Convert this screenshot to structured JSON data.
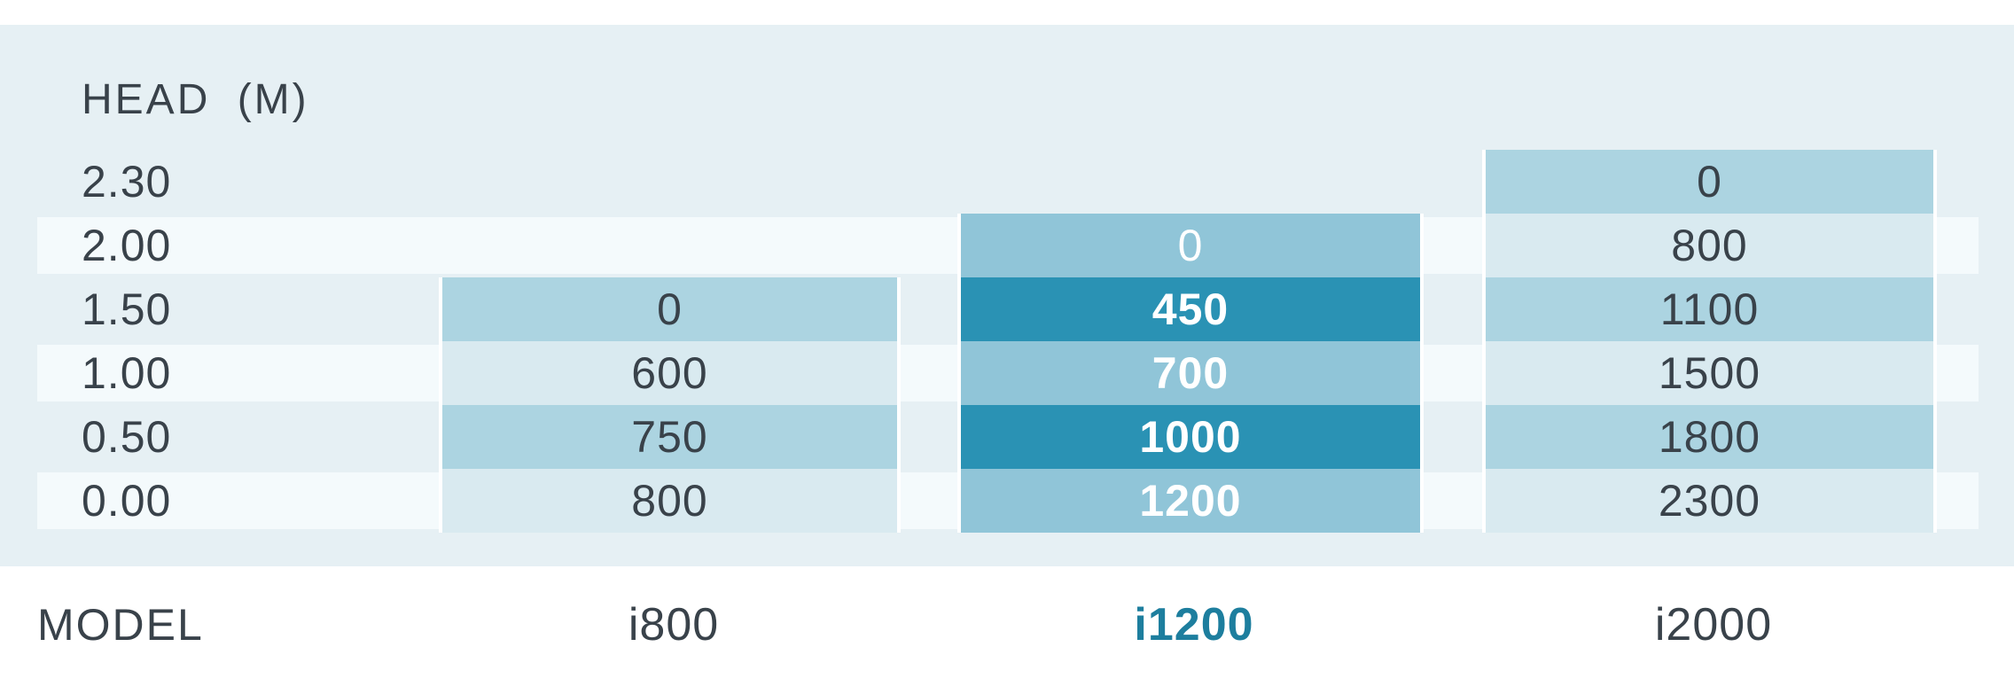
{
  "panel": {
    "head_label": "HEAD (M)"
  },
  "rows": [
    {
      "label": "2.30"
    },
    {
      "label": "2.00"
    },
    {
      "label": "1.50"
    },
    {
      "label": "1.00"
    },
    {
      "label": "0.50"
    },
    {
      "label": "0.00"
    }
  ],
  "columns": [
    {
      "model": "i800",
      "cells": [
        {
          "value": "0"
        },
        {
          "value": "600"
        },
        {
          "value": "750"
        },
        {
          "value": "800"
        }
      ]
    },
    {
      "model": "i1200",
      "cells": [
        {
          "value": "0"
        },
        {
          "value": "450"
        },
        {
          "value": "700"
        },
        {
          "value": "1000"
        },
        {
          "value": "1200"
        }
      ]
    },
    {
      "model": "i2000",
      "cells": [
        {
          "value": "0"
        },
        {
          "value": "800"
        },
        {
          "value": "1100"
        },
        {
          "value": "1500"
        },
        {
          "value": "1800"
        },
        {
          "value": "2300"
        }
      ]
    }
  ],
  "footer": {
    "model_label": "MODEL"
  },
  "colors": {
    "panel_bg": "#e6f0f4",
    "stripe_bg": "#f4fafc",
    "cell_medium": "#acd4e1",
    "cell_light": "#d9eaf0",
    "highlight_cell_medium": "#90c5d8",
    "highlight_cell_dark": "#2a92b4",
    "text_dark": "#39424a",
    "text_light": "#ffffff",
    "highlight_model_label": "#1d7e9e"
  },
  "chart_data": {
    "type": "table",
    "title": "HEAD (M)",
    "row_header_label": "HEAD (M)",
    "column_header_label": "MODEL",
    "rows_head_m": [
      2.3,
      2.0,
      1.5,
      1.0,
      0.5,
      0.0
    ],
    "columns": [
      "i800",
      "i1200",
      "i2000"
    ],
    "values": {
      "i800": [
        null,
        null,
        0,
        600,
        750,
        800
      ],
      "i1200": [
        null,
        0,
        450,
        700,
        1000,
        1200
      ],
      "i2000": [
        0,
        800,
        1100,
        1500,
        1800,
        2300
      ]
    },
    "highlighted_column": "i1200",
    "layout_hints": {
      "striped_rows_head_m": [
        2.0,
        1.0,
        0.0
      ],
      "grid": "off",
      "row_labels_position": "left",
      "model_labels_position": "bottom"
    }
  }
}
